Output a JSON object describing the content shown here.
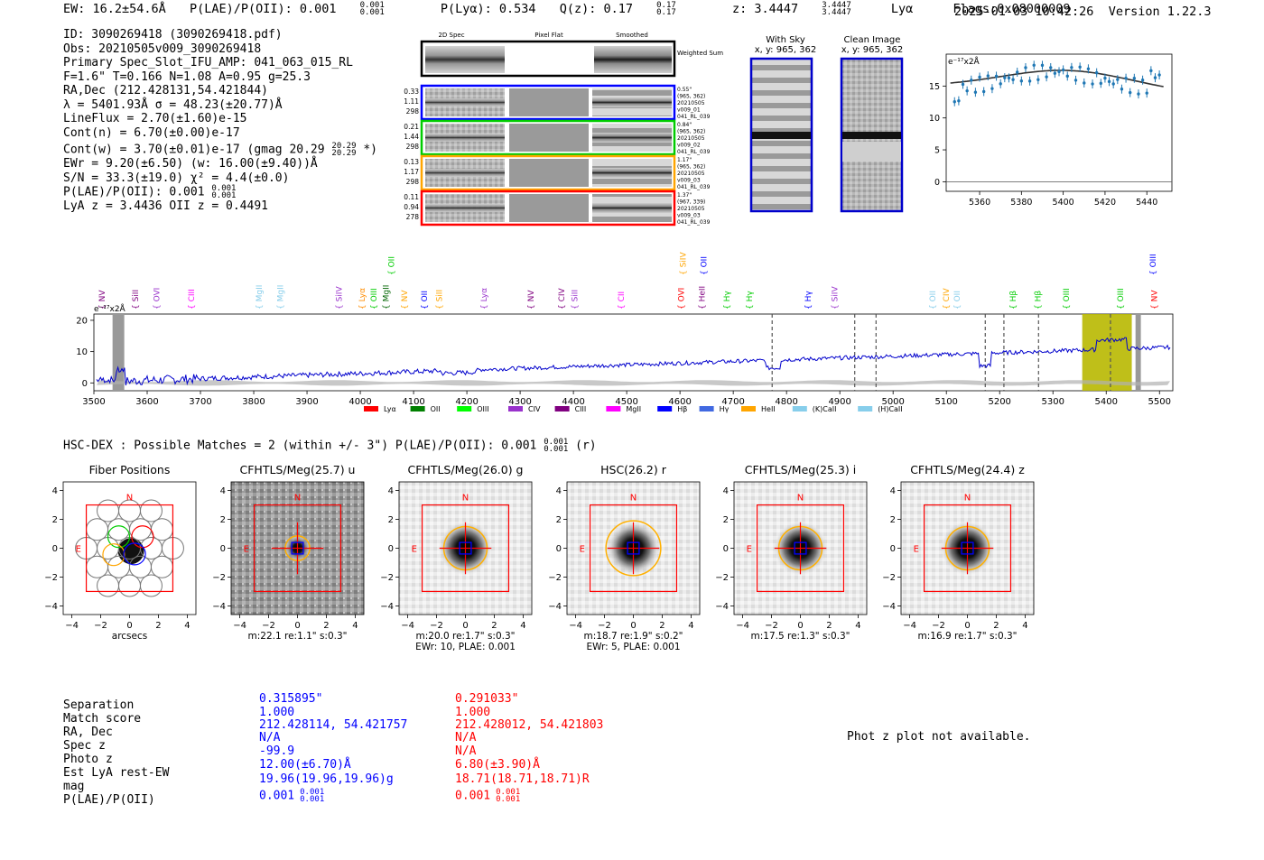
{
  "header": {
    "ew": "EW: 16.2±54.6Å",
    "plae_label": "P(LAE)/P(OII): 0.001",
    "plae_sup": "0.001",
    "plae_sub": "0.001",
    "plya": "P(Lyα): 0.534",
    "qz_label": "Q(z): 0.17",
    "qz_sup": "0.17",
    "qz_sub": "0.17",
    "z_label": "z: 3.4447",
    "z_sup": "3.4447",
    "z_sub": "3.4447",
    "z_line": "Lyα",
    "flags": "Flags:0x08000009",
    "timestamp": "2025-01-03 10:42:26",
    "version": "Version 1.22.3"
  },
  "info": {
    "id": "ID: 3090269418 (3090269418.pdf)",
    "obs": "Obs: 20210505v009_3090269418",
    "primary": "Primary Spec_Slot_IFU_AMP: 041_063_015_RL",
    "params": "F=1.6\"  T=0.166  N=1.08  A=0.95  g=25.3",
    "radec": "RA,Dec (212.428131,54.421844)",
    "lambda": "λ = 5401.93Å  σ = 48.23(±20.77)Å",
    "lineflux": "LineFlux = 2.70(±1.60)e-15",
    "contn": "Cont(n) = 6.70(±0.00)e-17",
    "contw": "Cont(w) = 3.70(±0.01)e-17 (gmag 20.29",
    "contw_sup": "20.29",
    "contw_sub": "20.29",
    "contw_end": "*)",
    "ewr": "EWr = 9.20(±6.50) (w: 16.00(±9.40))Å",
    "sn": "S/N = 33.3(±19.0)  χ² = 4.4(±0.0)",
    "plae": "P(LAE)/P(OII): 0.001",
    "plae_sup": "0.001",
    "plae_sub": "0.001",
    "lyaz": "LyA z = 3.4436  OII z = 0.4491"
  },
  "cutouts": {
    "col_headers": [
      "2D Spec",
      "Pixel Flat",
      "Smoothed"
    ],
    "weighted": "Weighted Sum",
    "rows": [
      {
        "vals": [
          "0.33",
          "1.11",
          "298"
        ],
        "meta": [
          "0.55\"",
          "(965, 362)",
          "20210505",
          "v009_01",
          "041_RL_039"
        ],
        "color": "#0000ff"
      },
      {
        "vals": [
          "0.21",
          "1.44",
          "298"
        ],
        "meta": [
          "0.84\"",
          "(965, 362)",
          "20210505",
          "v009_02",
          "041_RL_039"
        ],
        "color": "#00cc00"
      },
      {
        "vals": [
          "0.13",
          "1.17",
          "298"
        ],
        "meta": [
          "1.17\"",
          "(965, 362)",
          "20210505",
          "v009_03",
          "041_RL_039"
        ],
        "color": "#ffa500"
      },
      {
        "vals": [
          "0.11",
          "0.94",
          "278"
        ],
        "meta": [
          "1.37\"",
          "(967, 339)",
          "20210505",
          "v009_03",
          "041_RL_039"
        ],
        "color": "#ff0000"
      }
    ],
    "with_sky": "With Sky",
    "with_sky_xy": "x, y: 965, 362",
    "clean": "Clean Image",
    "clean_xy": "x, y: 965, 362"
  },
  "zoom_plot": {
    "unit": "e⁻¹⁷x2Å",
    "xticks": [
      "5360",
      "5380",
      "5400",
      "5420",
      "5440"
    ],
    "yticks": [
      "0",
      "5",
      "10",
      "15"
    ]
  },
  "spectrum": {
    "unit": "e⁻¹⁷x2Å",
    "xticks": [
      "3500",
      "3600",
      "3700",
      "3800",
      "3900",
      "4000",
      "4100",
      "4200",
      "4300",
      "4400",
      "4500",
      "4600",
      "4700",
      "4800",
      "4900",
      "5000",
      "5100",
      "5200",
      "5300",
      "5400",
      "5500"
    ],
    "yticks": [
      "0",
      "10",
      "20"
    ],
    "lines": [
      {
        "w": 3515,
        "label": "NV",
        "color": "#800080",
        "row": 0
      },
      {
        "w": 3578,
        "label": "SiII",
        "color": "#800080",
        "row": 0
      },
      {
        "w": 3618,
        "label": "OVI",
        "color": "#9932cc",
        "row": 0
      },
      {
        "w": 3683,
        "label": "CIII",
        "color": "#ff00ff",
        "row": 0
      },
      {
        "w": 3810,
        "label": "MgII",
        "color": "#87ceeb",
        "row": 0
      },
      {
        "w": 3850,
        "label": "MgII",
        "color": "#87ceeb",
        "row": 0
      },
      {
        "w": 3960,
        "label": "SiIV",
        "color": "#9932cc",
        "row": 0
      },
      {
        "w": 4003,
        "label": "Lyα",
        "color": "#ff8c00",
        "row": 0
      },
      {
        "w": 4025,
        "label": "OIII",
        "color": "#00cc00",
        "row": 0
      },
      {
        "w": 4048,
        "label": "MgII",
        "color": "#006400",
        "row": 0
      },
      {
        "w": 4058,
        "label": "OII",
        "color": "#00cc00",
        "row": 1
      },
      {
        "w": 4083,
        "label": "NV",
        "color": "#ffa500",
        "row": 0
      },
      {
        "w": 4120,
        "label": "OII",
        "color": "#0000ff",
        "row": 0
      },
      {
        "w": 4148,
        "label": "SiII",
        "color": "#ffa500",
        "row": 0
      },
      {
        "w": 4232,
        "label": "Lyα",
        "color": "#9932cc",
        "row": 0
      },
      {
        "w": 4320,
        "label": "NV",
        "color": "#800080",
        "row": 0
      },
      {
        "w": 4378,
        "label": "CIV",
        "color": "#800080",
        "row": 0
      },
      {
        "w": 4402,
        "label": "SiII",
        "color": "#9932cc",
        "row": 0
      },
      {
        "w": 4490,
        "label": "CII",
        "color": "#ff00ff",
        "row": 0
      },
      {
        "w": 4602,
        "label": "OVI",
        "color": "#ff0000",
        "row": 0
      },
      {
        "w": 4606,
        "label": "SiIV",
        "color": "#ffa500",
        "row": 1
      },
      {
        "w": 4641,
        "label": "HeII",
        "color": "#800080",
        "row": 0
      },
      {
        "w": 4645,
        "label": "OII",
        "color": "#0000ff",
        "row": 1
      },
      {
        "w": 4688,
        "label": "Hγ",
        "color": "#00cc00",
        "row": 0
      },
      {
        "w": 4730,
        "label": "Hγ",
        "color": "#00cc00",
        "row": 0
      },
      {
        "w": 4840,
        "label": "Hγ",
        "color": "#0000ff",
        "row": 0
      },
      {
        "w": 4890,
        "label": "SiIV",
        "color": "#9932cc",
        "row": 0
      },
      {
        "w": 5074,
        "label": "OII",
        "color": "#87ceeb",
        "row": 0
      },
      {
        "w": 5100,
        "label": "CIV",
        "color": "#ffa500",
        "row": 0
      },
      {
        "w": 5120,
        "label": "OII",
        "color": "#87ceeb",
        "row": 0
      },
      {
        "w": 5225,
        "label": "Hβ",
        "color": "#00cc00",
        "row": 0
      },
      {
        "w": 5272,
        "label": "Hβ",
        "color": "#00cc00",
        "row": 0
      },
      {
        "w": 5325,
        "label": "OIII",
        "color": "#00cc00",
        "row": 0
      },
      {
        "w": 5427,
        "label": "OIII",
        "color": "#00cc00",
        "row": 0
      },
      {
        "w": 5490,
        "label": "NV",
        "color": "#ff0000",
        "row": 0
      },
      {
        "w": 5488,
        "label": "OIII",
        "color": "#0000ff",
        "row": 1
      }
    ],
    "dashed": [
      4773,
      4928,
      4968,
      5173,
      5208,
      5273,
      5408
    ],
    "legend": [
      {
        "label": "Lyα",
        "color": "#ff0000"
      },
      {
        "label": "OII",
        "color": "#008000"
      },
      {
        "label": "OIII",
        "color": "#00ff00"
      },
      {
        "label": "CIV",
        "color": "#9932cc"
      },
      {
        "label": "CIII",
        "color": "#800080"
      },
      {
        "label": "MgII",
        "color": "#ff00ff"
      },
      {
        "label": "Hβ",
        "color": "#0000ff"
      },
      {
        "label": "Hγ",
        "color": "#4169e1"
      },
      {
        "label": "HeII",
        "color": "#ffa500"
      },
      {
        "label": "(K)CaII",
        "color": "#87ceeb"
      },
      {
        "label": "(H)CaII",
        "color": "#87ceeb"
      }
    ]
  },
  "hsc": {
    "line": "HSC-DEX : Possible Matches = 2 (within +/- 3\")  P(LAE)/P(OII): 0.001",
    "sup": "0.001",
    "sub": "0.001",
    "end": "(r)"
  },
  "stamps": [
    {
      "title": "Fiber Positions",
      "caption1": "arcsecs",
      "caption2": ""
    },
    {
      "title": "CFHTLS/Meg(25.7) u",
      "caption1": "m:22.1  re:1.1\"  s:0.3\"",
      "caption2": ""
    },
    {
      "title": "CFHTLS/Meg(26.0) g",
      "caption1": "m:20.0  re:1.7\"  s:0.3\"",
      "caption2": "EWr: 10, PLAE: 0.001"
    },
    {
      "title": "HSC(26.2) r",
      "caption1": "m:18.7  re:1.9\"  s:0.2\"",
      "caption2": "EWr: 5, PLAE: 0.001"
    },
    {
      "title": "CFHTLS/Meg(25.3) i",
      "caption1": "m:17.5  re:1.3\"  s:0.3\"",
      "caption2": ""
    },
    {
      "title": "CFHTLS/Meg(24.4) z",
      "caption1": "m:16.9  re:1.7\"  s:0.3\"",
      "caption2": ""
    }
  ],
  "stamp_axis": {
    "ticks": [
      "−4",
      "−2",
      "0",
      "2",
      "4"
    ],
    "n": "N",
    "e": "E"
  },
  "match": {
    "labels": [
      "Separation",
      "Match score",
      "RA, Dec",
      "Spec z",
      "Photo z",
      "Est LyA rest-EW",
      "mag",
      "P(LAE)/P(OII)"
    ],
    "col1": [
      "0.315895\"",
      "1.000",
      "212.428114, 54.421757",
      "N/A",
      "-99.9",
      "12.00(±6.70)Å",
      "19.96(19.96,19.96)g",
      "0.001"
    ],
    "col1_sup": "0.001",
    "col1_sub": "0.001",
    "col2": [
      "0.291033\"",
      "1.000",
      "212.428012, 54.421803",
      "N/A",
      "N/A",
      "6.80(±3.90)Å",
      "18.71(18.71,18.71)R",
      "0.001"
    ],
    "col2_sup": "0.001",
    "col2_sub": "0.001",
    "col1_color": "#0000ff",
    "col2_color": "#ff0000",
    "photz_msg": "Phot z plot not available."
  }
}
